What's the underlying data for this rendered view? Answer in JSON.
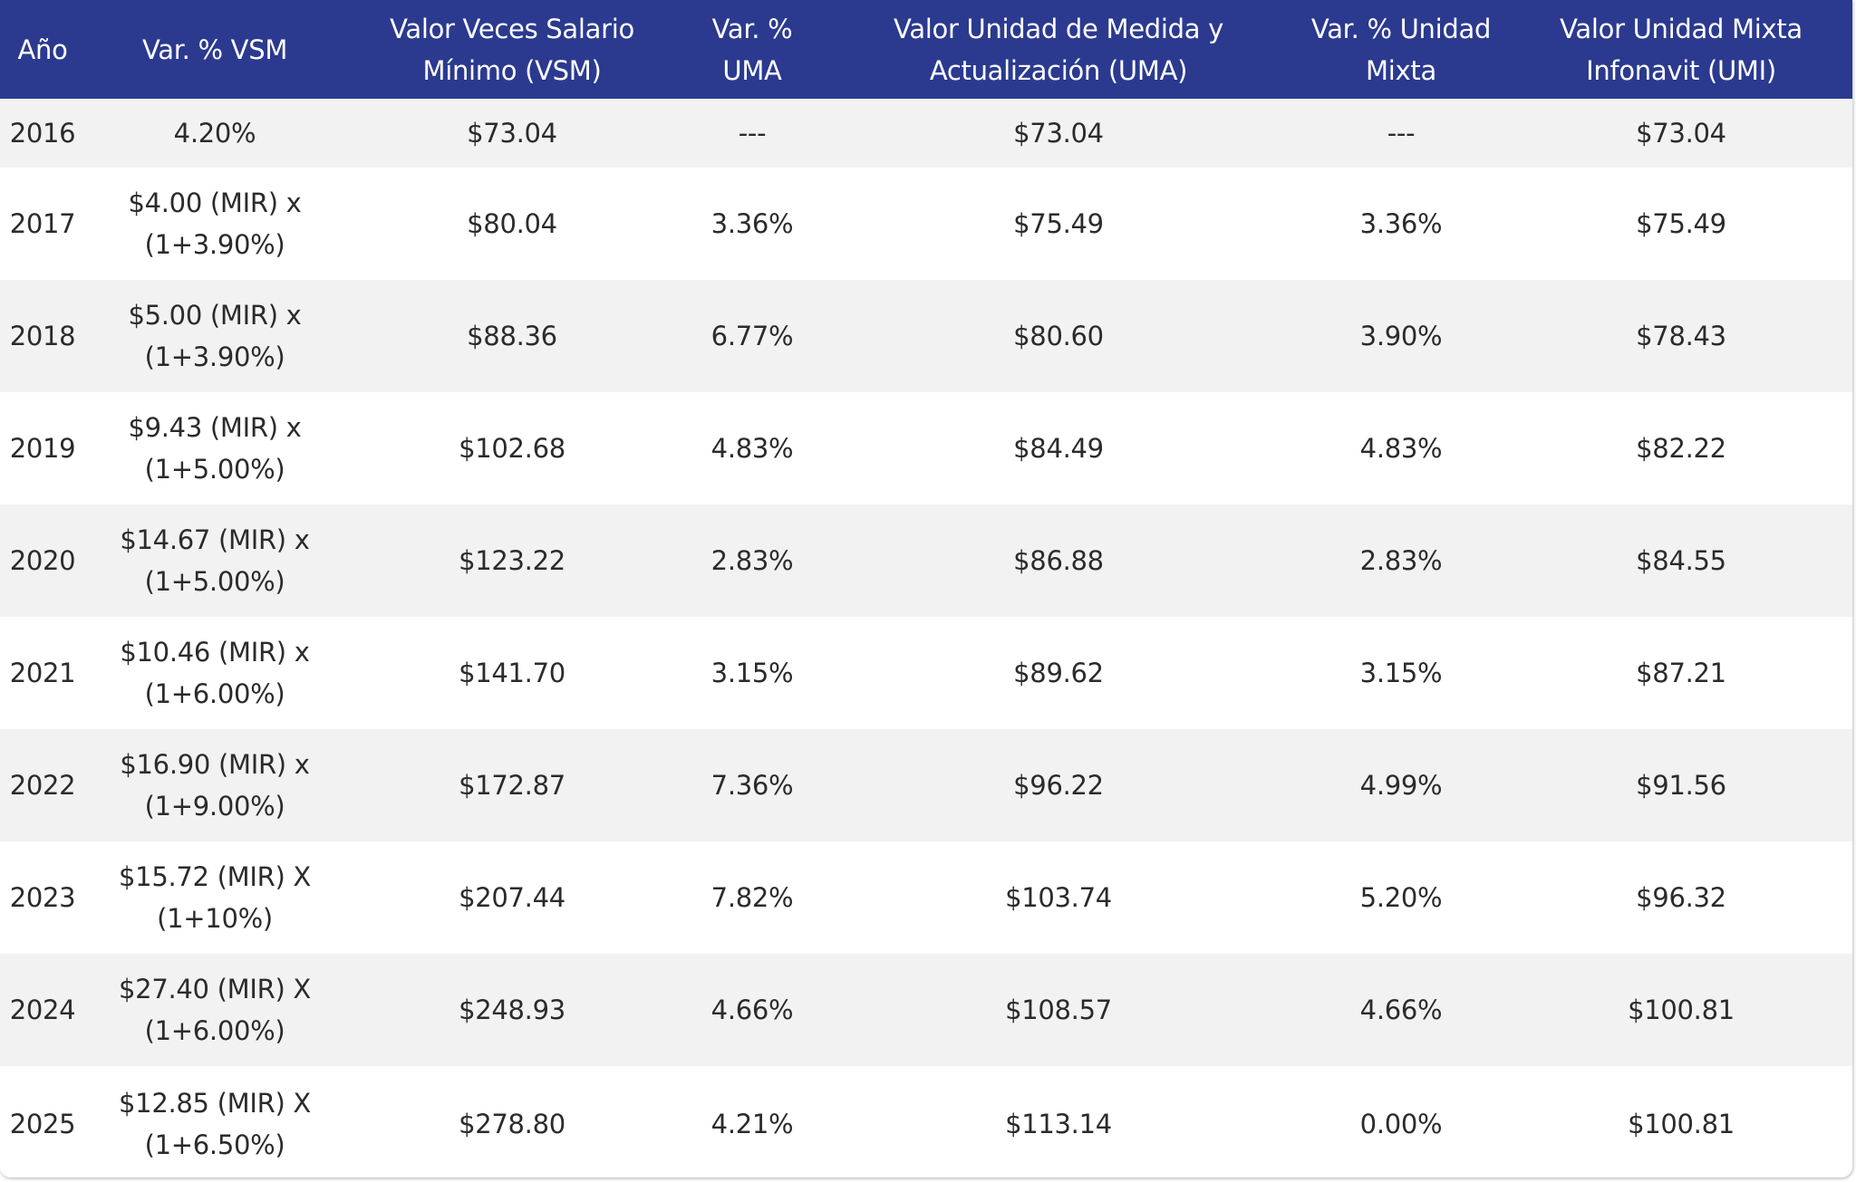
{
  "table": {
    "headers": [
      {
        "lines": [
          "Año"
        ]
      },
      {
        "lines": [
          "Var. % VSM"
        ]
      },
      {
        "lines": [
          "Valor Veces Salario",
          "Mínimo (VSM)"
        ]
      },
      {
        "lines": [
          "Var. %",
          "UMA"
        ]
      },
      {
        "lines": [
          "Valor Unidad de Medida y",
          "Actualización (UMA)"
        ]
      },
      {
        "lines": [
          "Var. % Unidad",
          "Mixta"
        ]
      },
      {
        "lines": [
          "Valor Unidad Mixta",
          "Infonavit (UMI)"
        ]
      }
    ],
    "rows": [
      {
        "year": "2016",
        "var_vsm": [
          "4.20%"
        ],
        "vsm": "$73.04",
        "var_uma": "---",
        "uma": "$73.04",
        "var_mixta": "---",
        "umi": "$73.04"
      },
      {
        "year": "2017",
        "var_vsm": [
          "$4.00 (MIR) x",
          "(1+3.90%)"
        ],
        "vsm": "$80.04",
        "var_uma": "3.36%",
        "uma": "$75.49",
        "var_mixta": "3.36%",
        "umi": "$75.49"
      },
      {
        "year": "2018",
        "var_vsm": [
          "$5.00 (MIR) x",
          "(1+3.90%)"
        ],
        "vsm": "$88.36",
        "var_uma": "6.77%",
        "uma": "$80.60",
        "var_mixta": "3.90%",
        "umi": "$78.43"
      },
      {
        "year": "2019",
        "var_vsm": [
          "$9.43 (MIR) x",
          "(1+5.00%)"
        ],
        "vsm": "$102.68",
        "var_uma": "4.83%",
        "uma": "$84.49",
        "var_mixta": "4.83%",
        "umi": "$82.22"
      },
      {
        "year": "2020",
        "var_vsm": [
          "$14.67 (MIR) x",
          "(1+5.00%)"
        ],
        "vsm": "$123.22",
        "var_uma": "2.83%",
        "uma": "$86.88",
        "var_mixta": "2.83%",
        "umi": "$84.55"
      },
      {
        "year": "2021",
        "var_vsm": [
          "$10.46 (MIR) x",
          "(1+6.00%)"
        ],
        "vsm": "$141.70",
        "var_uma": "3.15%",
        "uma": "$89.62",
        "var_mixta": "3.15%",
        "umi": "$87.21"
      },
      {
        "year": "2022",
        "var_vsm": [
          "$16.90 (MIR) x",
          "(1+9.00%)"
        ],
        "vsm": "$172.87",
        "var_uma": "7.36%",
        "uma": "$96.22",
        "var_mixta": "4.99%",
        "umi": "$91.56"
      },
      {
        "year": "2023",
        "var_vsm": [
          "$15.72 (MIR) X",
          "(1+10%)"
        ],
        "vsm": "$207.44",
        "var_uma": "7.82%",
        "uma": "$103.74",
        "var_mixta": "5.20%",
        "umi": "$96.32"
      },
      {
        "year": "2024",
        "var_vsm": [
          "$27.40 (MIR) X",
          "(1+6.00%)"
        ],
        "vsm": "$248.93",
        "var_uma": "4.66%",
        "uma": "$108.57",
        "var_mixta": "4.66%",
        "umi": "$100.81"
      },
      {
        "year": "2025",
        "var_vsm": [
          "$12.85 (MIR) X",
          "(1+6.50%)"
        ],
        "vsm": "$278.80",
        "var_uma": "4.21%",
        "uma": "$113.14",
        "var_mixta": "0.00%",
        "umi": "$100.81"
      }
    ]
  }
}
